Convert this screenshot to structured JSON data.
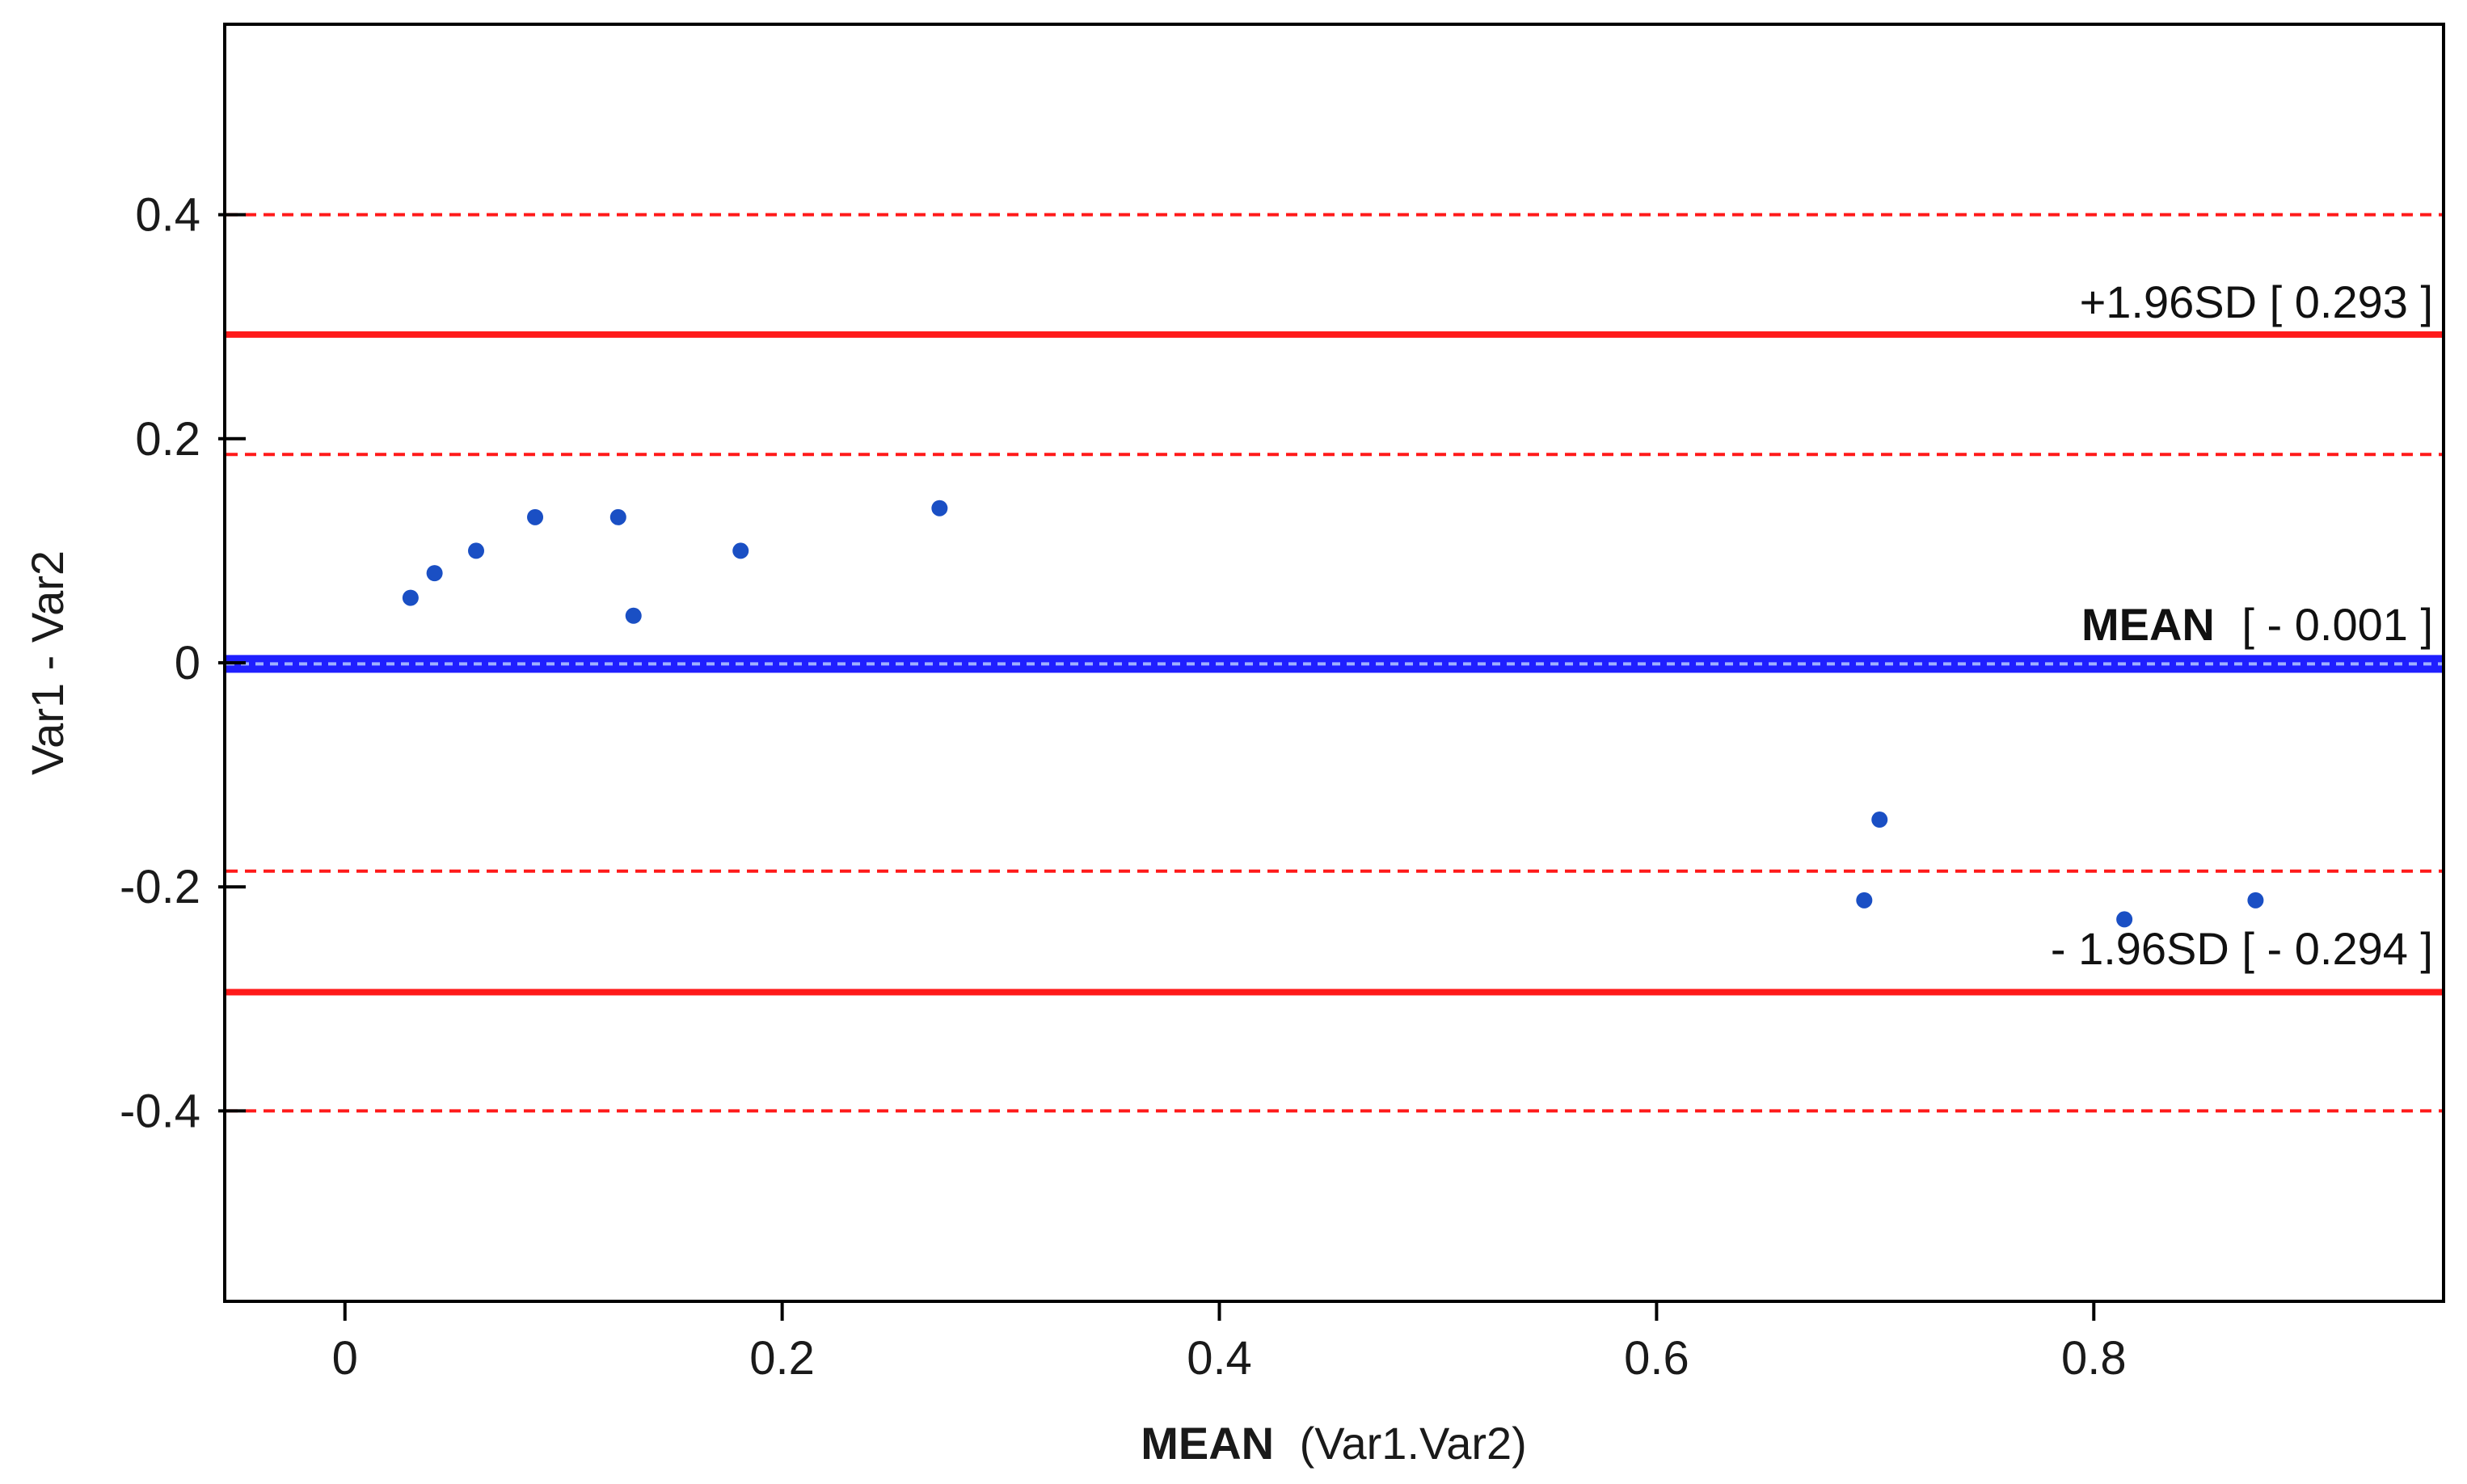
{
  "chart_data": {
    "type": "scatter",
    "title": "",
    "xlabel_bold": "MEAN",
    "xlabel_rest": "(Var1.Var2)",
    "ylabel": "Var1 - Var2",
    "xlim": [
      -0.055,
      0.96
    ],
    "ylim": [
      -0.57,
      0.57
    ],
    "x_ticks": [
      0,
      0.2,
      0.4,
      0.6,
      0.8
    ],
    "x_tick_labels": [
      "0",
      "0.2",
      "0.4",
      "0.6",
      "0.8"
    ],
    "y_ticks": [
      -0.4,
      -0.2,
      0,
      0.2,
      0.4
    ],
    "y_tick_labels": [
      "-0.4",
      "-0.2",
      "0",
      "0.2",
      "0.4"
    ],
    "grid": false,
    "legend": "none",
    "points": [
      {
        "x": 0.03,
        "y": 0.058
      },
      {
        "x": 0.041,
        "y": 0.08
      },
      {
        "x": 0.06,
        "y": 0.1
      },
      {
        "x": 0.087,
        "y": 0.13
      },
      {
        "x": 0.125,
        "y": 0.13
      },
      {
        "x": 0.132,
        "y": 0.042
      },
      {
        "x": 0.181,
        "y": 0.1
      },
      {
        "x": 0.272,
        "y": 0.138
      },
      {
        "x": 0.695,
        "y": -0.212
      },
      {
        "x": 0.702,
        "y": -0.14
      },
      {
        "x": 0.814,
        "y": -0.229
      },
      {
        "x": 0.874,
        "y": -0.212
      }
    ],
    "reference_lines": {
      "mean": {
        "value": -0.001,
        "label_bold": "MEAN",
        "label_value": "[ - 0.001 ]"
      },
      "upper_loa": {
        "value": 0.293,
        "label": "+1.96SD [ 0.293 ]"
      },
      "lower_loa": {
        "value": -0.294,
        "label": "- 1.96SD [ - 0.294 ]"
      },
      "dashed_lines": [
        0.4,
        0.186,
        -0.186,
        -0.4
      ]
    },
    "colors": {
      "points": "#1a4fc4",
      "mean_line": "#1f1fff",
      "loa_line": "#ff1a1a",
      "dashed_line": "#ff1a1a",
      "axis": "#000000"
    }
  }
}
